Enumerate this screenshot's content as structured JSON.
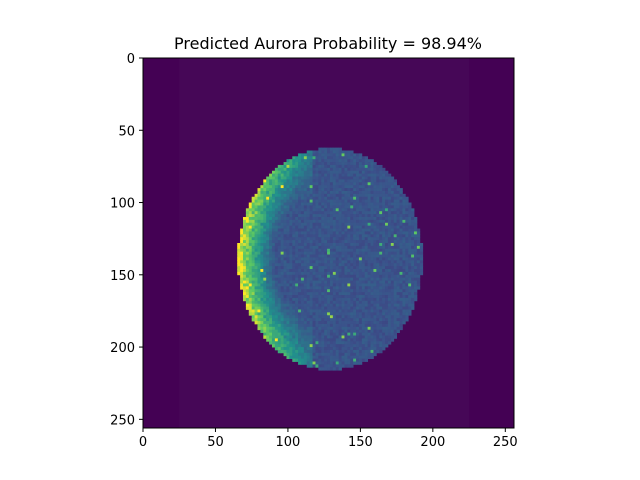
{
  "chart_data": {
    "type": "heatmap",
    "title": "Predicted Aurora Probability = 98.94%",
    "xlabel": "",
    "ylabel": "",
    "xlim": [
      0,
      256
    ],
    "ylim": [
      256,
      0
    ],
    "xticks": [
      0,
      50,
      100,
      150,
      200,
      250
    ],
    "yticks": [
      0,
      50,
      100,
      150,
      200,
      250
    ],
    "grid": false,
    "colormap": "viridis",
    "background_color": "#440154",
    "image": {
      "description_free_region": {
        "disk_center": [
          128,
          138
        ],
        "disk_radius_x": 63,
        "disk_radius_y": 76
      },
      "bright_arc_side": "left",
      "frame_inner_rect": [
        25,
        225
      ]
    }
  },
  "colors": {
    "viridis_dark": "#440154",
    "viridis_low": "#3b528b",
    "viridis_mid": "#21918c",
    "viridis_high": "#5ec962",
    "viridis_top": "#fde725"
  }
}
